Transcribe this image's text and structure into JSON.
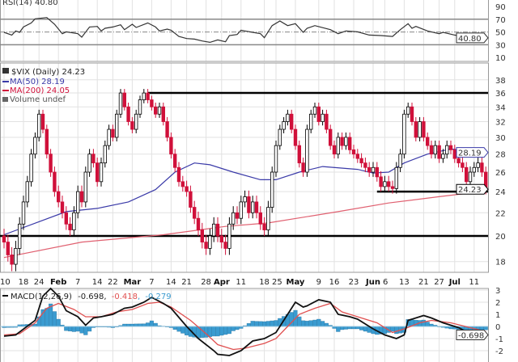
{
  "chart_data": [
    {
      "type": "line",
      "panel": "rsi",
      "legend": "RSI(14) 40.80",
      "last_value_label": "40.80",
      "y_ticks": [
        90,
        70,
        50,
        30,
        10
      ],
      "ylim": [
        0,
        100
      ],
      "reference_lines": {
        "overbought": 70,
        "mid": 50,
        "oversold": 30
      },
      "series_points_day_value": [
        [
          0,
          49.5
        ],
        [
          2,
          45.2
        ],
        [
          3,
          51.6
        ],
        [
          4,
          49.5
        ],
        [
          5,
          57.9
        ],
        [
          7,
          64.2
        ],
        [
          8,
          70.6
        ],
        [
          11,
          72.7
        ],
        [
          13,
          62.1
        ],
        [
          15,
          47.3
        ],
        [
          16,
          50.3
        ],
        [
          19,
          47.3
        ],
        [
          20,
          41.9
        ],
        [
          22,
          57.9
        ],
        [
          24,
          58.7
        ],
        [
          25,
          51.6
        ],
        [
          26,
          55.8
        ],
        [
          28,
          57.9
        ],
        [
          30,
          61.3
        ],
        [
          31,
          53.7
        ],
        [
          33,
          62.1
        ],
        [
          34,
          57.1
        ],
        [
          37,
          64.2
        ],
        [
          39,
          57.9
        ],
        [
          40,
          51.6
        ],
        [
          42,
          54.5
        ],
        [
          43,
          52.8
        ],
        [
          45,
          43.1
        ],
        [
          47,
          39.8
        ],
        [
          49,
          38.9
        ],
        [
          51,
          36
        ],
        [
          53,
          33.8
        ],
        [
          55,
          37.6
        ],
        [
          57,
          34.7
        ],
        [
          58,
          44.4
        ],
        [
          60,
          46.1
        ],
        [
          61,
          52.8
        ],
        [
          62,
          51.6
        ],
        [
          64,
          49.5
        ],
        [
          66,
          47.3
        ],
        [
          67,
          41
        ],
        [
          69,
          60
        ],
        [
          71,
          67.2
        ],
        [
          73,
          60
        ],
        [
          75,
          63
        ],
        [
          77,
          49.5
        ],
        [
          78,
          55.8
        ],
        [
          80,
          60
        ],
        [
          84,
          53.7
        ],
        [
          86,
          47.3
        ],
        [
          88,
          51.6
        ],
        [
          91,
          50.3
        ],
        [
          94,
          45.2
        ],
        [
          97,
          44.4
        ],
        [
          100,
          43.1
        ],
        [
          102,
          53.7
        ],
        [
          104,
          63
        ],
        [
          105,
          55.8
        ],
        [
          106,
          58.7
        ],
        [
          109,
          51.6
        ],
        [
          112,
          47.3
        ],
        [
          113,
          49.5
        ],
        [
          116,
          45.2
        ],
        [
          120,
          41
        ],
        [
          122,
          48.6
        ],
        [
          123,
          45.2
        ],
        [
          124,
          40.8
        ]
      ],
      "color": "#333333"
    },
    {
      "type": "candlestick",
      "panel": "price",
      "legend": {
        "symbol": "$VIX (Daily) 24.23",
        "ma50": "MA(50) 28.19",
        "ma200": "MA(200) 24.05",
        "volume": "Volume undef"
      },
      "scale": "log",
      "ylim": [
        17,
        39
      ],
      "y_ticks": [
        38,
        36,
        34,
        32,
        30,
        28,
        26,
        24,
        22,
        20,
        18
      ],
      "x_tick_labels": [
        {
          "day": 0,
          "label": "10"
        },
        {
          "day": 5,
          "label": "18"
        },
        {
          "day": 9,
          "label": "24"
        },
        {
          "day": 14,
          "label": "Feb",
          "month": true
        },
        {
          "day": 19,
          "label": "7"
        },
        {
          "day": 24,
          "label": "14"
        },
        {
          "day": 28,
          "label": "22"
        },
        {
          "day": 33,
          "label": "Mar",
          "month": true
        },
        {
          "day": 38,
          "label": "7"
        },
        {
          "day": 43,
          "label": "14"
        },
        {
          "day": 47,
          "label": "21"
        },
        {
          "day": 52,
          "label": "28"
        },
        {
          "day": 56,
          "label": "Apr",
          "month": true
        },
        {
          "day": 61,
          "label": "11"
        },
        {
          "day": 67,
          "label": "18"
        },
        {
          "day": 70,
          "label": "25"
        },
        {
          "day": 75,
          "label": "May",
          "month": true
        },
        {
          "day": 81,
          "label": "9"
        },
        {
          "day": 85,
          "label": "16"
        },
        {
          "day": 90,
          "label": "23"
        },
        {
          "day": 95,
          "label": "Jun",
          "month": true
        },
        {
          "day": 98,
          "label": "6"
        },
        {
          "day": 103,
          "label": "13"
        },
        {
          "day": 108,
          "label": "21"
        },
        {
          "day": 112,
          "label": "27"
        },
        {
          "day": 116,
          "label": "Jul",
          "month": true
        },
        {
          "day": 121,
          "label": "11"
        }
      ],
      "closes": [
        19.5,
        18.5,
        17.8,
        19,
        21,
        23,
        25,
        28,
        30,
        33,
        31,
        28,
        26,
        24,
        23,
        22,
        21,
        20.5,
        22,
        24,
        23,
        26,
        28,
        27,
        25,
        27,
        29,
        31,
        30,
        33,
        36,
        34,
        32,
        31,
        33,
        35,
        36,
        35,
        34,
        33,
        34,
        32,
        30,
        28,
        26.5,
        25,
        24.5,
        24,
        22.5,
        21.5,
        20.5,
        19.5,
        19,
        20,
        21,
        20,
        19.5,
        19,
        21,
        22,
        21.5,
        23,
        23.5,
        22,
        23,
        22,
        21,
        20.5,
        22.5,
        26,
        29,
        31,
        32,
        33,
        31,
        29,
        27,
        26,
        31,
        33,
        34,
        32,
        33,
        31,
        29,
        28,
        30,
        29,
        30,
        28.5,
        28,
        27.5,
        27,
        26.5,
        26,
        26.5,
        25.5,
        24.5,
        25,
        24.5,
        24.3,
        26.5,
        28,
        33,
        34,
        32,
        30,
        32,
        30,
        29,
        28,
        29,
        27.5,
        28,
        29,
        28.5,
        27.5,
        27,
        26.5,
        25,
        26,
        26.5,
        27,
        26,
        24.23
      ],
      "ma50_points_day_value": [
        [
          0,
          20.1
        ],
        [
          16,
          22.1
        ],
        [
          24,
          22.4
        ],
        [
          32,
          23.0
        ],
        [
          39,
          24.2
        ],
        [
          44,
          26.0
        ],
        [
          49,
          27.0
        ],
        [
          53,
          26.8
        ],
        [
          59,
          26.0
        ],
        [
          66,
          25.2
        ],
        [
          70,
          25.2
        ],
        [
          76,
          26.0
        ],
        [
          82,
          26.6
        ],
        [
          91,
          26.3
        ],
        [
          95,
          25.9
        ],
        [
          99,
          26.0
        ],
        [
          103,
          27.0
        ],
        [
          109,
          28.0
        ],
        [
          115,
          28.6
        ],
        [
          124,
          28.19
        ]
      ],
      "ma200_points_day_value": [
        [
          0,
          18.3
        ],
        [
          20,
          19.5
        ],
        [
          41,
          20.1
        ],
        [
          57,
          20.8
        ],
        [
          68,
          21.1
        ],
        [
          86,
          22.1
        ],
        [
          99,
          22.9
        ],
        [
          112,
          23.5
        ],
        [
          124,
          24.05
        ]
      ],
      "trendlines": [
        {
          "level": 36,
          "from_day": 37,
          "to_day": 124
        },
        {
          "level": 20,
          "from_day": 0,
          "to_day": 124
        },
        {
          "level": 24,
          "from_day": 96,
          "to_day": 124
        }
      ],
      "last_value_labels": {
        "close": "24.23",
        "ma50": "28.19"
      },
      "colors": {
        "up": "#000000",
        "down": "#d0103a",
        "ma50": "#3a3aa8",
        "ma200": "#e06070",
        "trendline": "#000000"
      }
    },
    {
      "type": "line",
      "panel": "macd",
      "legend": {
        "name": "MACD(12,26,9)",
        "macd": "-0.698",
        "signal": "-0.418",
        "histogram": "-0.279"
      },
      "last_value_label": "-0.698",
      "y_ticks": [
        3,
        2,
        1,
        0,
        -1,
        -2
      ],
      "ylim": [
        -2.9,
        3.3
      ],
      "macd_points_day_value": [
        [
          0,
          -0.8
        ],
        [
          3,
          -0.7
        ],
        [
          8,
          0.5
        ],
        [
          10,
          2.5
        ],
        [
          12,
          3.5
        ],
        [
          14,
          2.5
        ],
        [
          16,
          1.3
        ],
        [
          19,
          0.8
        ],
        [
          21,
          0.1
        ],
        [
          23,
          0.7
        ],
        [
          25,
          0.8
        ],
        [
          28,
          1.0
        ],
        [
          31,
          1.5
        ],
        [
          33,
          1.6
        ],
        [
          36,
          2.0
        ],
        [
          38,
          2.4
        ],
        [
          41,
          1.9
        ],
        [
          43,
          1.5
        ],
        [
          47,
          0.0
        ],
        [
          50,
          -1.0
        ],
        [
          54,
          -2.0
        ],
        [
          55,
          -2.3
        ],
        [
          58,
          -2.4
        ],
        [
          61,
          -2.0
        ],
        [
          64,
          -1.2
        ],
        [
          67,
          -1.0
        ],
        [
          70,
          -0.5
        ],
        [
          73,
          1.0
        ],
        [
          75,
          2.0
        ],
        [
          77,
          1.6
        ],
        [
          78,
          1.7
        ],
        [
          81,
          2.2
        ],
        [
          84,
          2.0
        ],
        [
          86,
          1.0
        ],
        [
          89,
          0.8
        ],
        [
          91,
          0.6
        ],
        [
          95,
          -0.2
        ],
        [
          98,
          -0.7
        ],
        [
          101,
          -1.0
        ],
        [
          103,
          -0.7
        ],
        [
          104,
          0.5
        ],
        [
          108,
          0.9
        ],
        [
          110,
          0.7
        ],
        [
          113,
          0.3
        ],
        [
          117,
          -0.1
        ],
        [
          120,
          -0.6
        ],
        [
          124,
          -0.698
        ]
      ],
      "signal_points_day_value": [
        [
          0,
          -0.7
        ],
        [
          4,
          -0.6
        ],
        [
          8,
          0.3
        ],
        [
          11,
          1.5
        ],
        [
          14,
          1.9
        ],
        [
          18,
          1.4
        ],
        [
          21,
          0.8
        ],
        [
          25,
          0.8
        ],
        [
          29,
          1.2
        ],
        [
          33,
          1.4
        ],
        [
          37,
          1.9
        ],
        [
          40,
          2.0
        ],
        [
          43,
          1.6
        ],
        [
          48,
          0.5
        ],
        [
          52,
          -0.6
        ],
        [
          55,
          -1.5
        ],
        [
          59,
          -1.9
        ],
        [
          62,
          -1.8
        ],
        [
          67,
          -1.4
        ],
        [
          70,
          -1.0
        ],
        [
          73,
          0.0
        ],
        [
          76,
          1.0
        ],
        [
          80,
          1.5
        ],
        [
          84,
          1.9
        ],
        [
          87,
          1.2
        ],
        [
          91,
          0.8
        ],
        [
          96,
          0.3
        ],
        [
          100,
          -0.5
        ],
        [
          103,
          -0.2
        ],
        [
          107,
          0.3
        ],
        [
          110,
          0.5
        ],
        [
          115,
          0.3
        ],
        [
          120,
          -0.1
        ],
        [
          124,
          -0.418
        ]
      ],
      "colors": {
        "macd": "#111111",
        "signal": "#e05050",
        "histogram": "#3a9bd0"
      }
    }
  ]
}
